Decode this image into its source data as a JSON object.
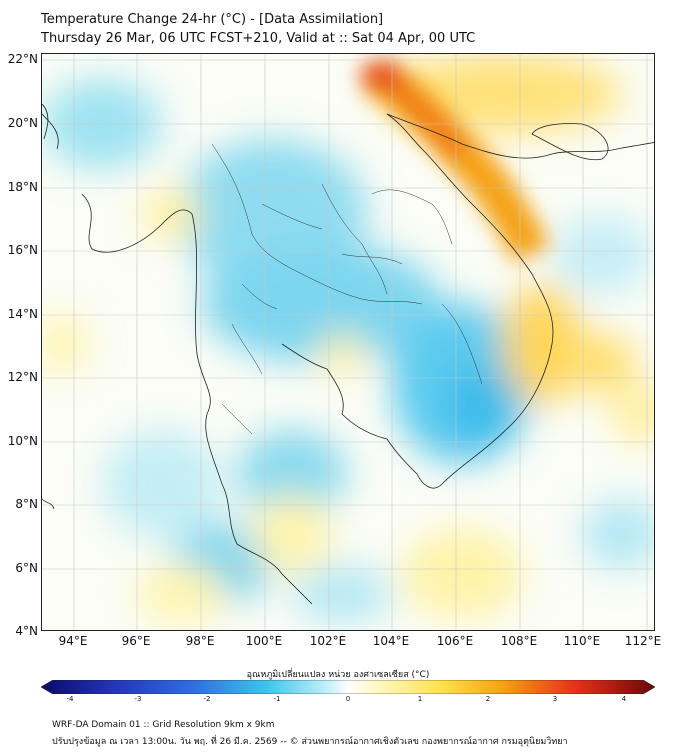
{
  "title": {
    "line1": "Temperature Change 24-hr (°C) - [Data Assimilation]",
    "line2": "Thursday 26 Mar, 06 UTC FCST+210, Valid at :: Sat 04 Apr, 00 UTC"
  },
  "map": {
    "lat_labels": [
      "22°N",
      "20°N",
      "18°N",
      "16°N",
      "14°N",
      "12°N",
      "10°N",
      "8°N",
      "6°N",
      "4°N"
    ],
    "lon_labels": [
      "94°E",
      "96°E",
      "98°E",
      "100°E",
      "102°E",
      "104°E",
      "106°E",
      "108°E",
      "110°E",
      "112°E"
    ],
    "lat_range": [
      4,
      22
    ],
    "lon_range": [
      93,
      112.2
    ],
    "gridlines": true
  },
  "colorbar": {
    "title": "อุณหภูมิเปลี่ยนแปลง หน่วย องศาเซลเซียส (°C)",
    "ticks": [
      "-4",
      "-3",
      "-2",
      "-1",
      "0",
      "1",
      "2",
      "3",
      "4"
    ],
    "range": [
      -4,
      4
    ],
    "colors": {
      "neg_strong": "#1a2b8a",
      "neg_mid": "#2f6fe0",
      "neg_light": "#3ec8ec",
      "neutral": "#ffffff",
      "pos_light": "#ffe97a",
      "pos_mid": "#f5a312",
      "pos_strong": "#7a0a0a"
    }
  },
  "footer": {
    "line1": "WRF-DA Domain 01 :: Grid Resolution 9km x 9km",
    "line2": "ปรับปรุงข้อมูล ณ เวลา 13:00น. วัน พฤ. ที่ 26 มี.ค. 2569 -- © ส่วนพยากรณ์อากาศเชิงตัวเลข กองพยากรณ์อากาศ กรมอุตุนิยมวิทยา"
  }
}
